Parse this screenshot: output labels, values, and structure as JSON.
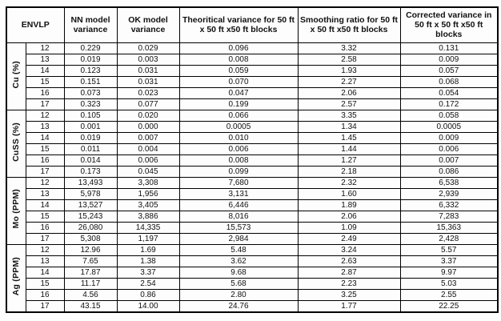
{
  "table": {
    "headers": {
      "envlp": "ENVLP",
      "nn": "NN model variance",
      "ok": "OK model variance",
      "theoretical": "Theoritical variance for 50 ft x 50 ft x50 ft blocks",
      "smoothing": "Smoothing ratio for 50 ft x 50 ft x50 ft blocks",
      "corrected": "Corrected variance in 50 ft x 50 ft x50 ft blocks"
    },
    "groups": [
      {
        "label": "Cu (%)",
        "rows": [
          [
            "12",
            "0.229",
            "0.029",
            "0.096",
            "3.32",
            "0.131"
          ],
          [
            "13",
            "0.019",
            "0.003",
            "0.008",
            "2.58",
            "0.009"
          ],
          [
            "14",
            "0.123",
            "0.031",
            "0.059",
            "1.93",
            "0.057"
          ],
          [
            "15",
            "0.151",
            "0.031",
            "0.070",
            "2.27",
            "0.068"
          ],
          [
            "16",
            "0.073",
            "0.023",
            "0.047",
            "2.06",
            "0.054"
          ],
          [
            "17",
            "0.323",
            "0.077",
            "0.199",
            "2.57",
            "0.172"
          ]
        ]
      },
      {
        "label": "CuSS (%)",
        "rows": [
          [
            "12",
            "0.105",
            "0.020",
            "0.066",
            "3.35",
            "0.058"
          ],
          [
            "13",
            "0.001",
            "0.000",
            "0.0005",
            "1.34",
            "0.0005"
          ],
          [
            "14",
            "0.019",
            "0.007",
            "0.010",
            "1.45",
            "0.009"
          ],
          [
            "15",
            "0.011",
            "0.004",
            "0.006",
            "1.44",
            "0.006"
          ],
          [
            "16",
            "0.014",
            "0.006",
            "0.008",
            "1.27",
            "0.007"
          ],
          [
            "17",
            "0.173",
            "0.045",
            "0.099",
            "2.18",
            "0.086"
          ]
        ]
      },
      {
        "label": "Mo (PPM)",
        "rows": [
          [
            "12",
            "13,493",
            "3,308",
            "7,680",
            "2.32",
            "6,538"
          ],
          [
            "13",
            "5,978",
            "1,956",
            "3,131",
            "1.60",
            "2,939"
          ],
          [
            "14",
            "13,527",
            "3,405",
            "6,446",
            "1.89",
            "6,332"
          ],
          [
            "15",
            "15,243",
            "3,886",
            "8,016",
            "2.06",
            "7,283"
          ],
          [
            "16",
            "26,080",
            "14,335",
            "15,573",
            "1.09",
            "15,363"
          ],
          [
            "17",
            "5,308",
            "1,197",
            "2,984",
            "2.49",
            "2,428"
          ]
        ]
      },
      {
        "label": "Ag (PPM)",
        "rows": [
          [
            "12",
            "12.96",
            "1.69",
            "5.48",
            "3.24",
            "5.57"
          ],
          [
            "13",
            "7.65",
            "1.38",
            "3.62",
            "2.63",
            "3.37"
          ],
          [
            "14",
            "17.87",
            "3.37",
            "9.68",
            "2.87",
            "9.97"
          ],
          [
            "15",
            "11.17",
            "2.54",
            "5.68",
            "2.23",
            "5.03"
          ],
          [
            "16",
            "4.56",
            "0.86",
            "2.80",
            "3.25",
            "2.55"
          ],
          [
            "17",
            "43.15",
            "14.00",
            "24.76",
            "1.77",
            "22.25"
          ]
        ]
      }
    ]
  }
}
